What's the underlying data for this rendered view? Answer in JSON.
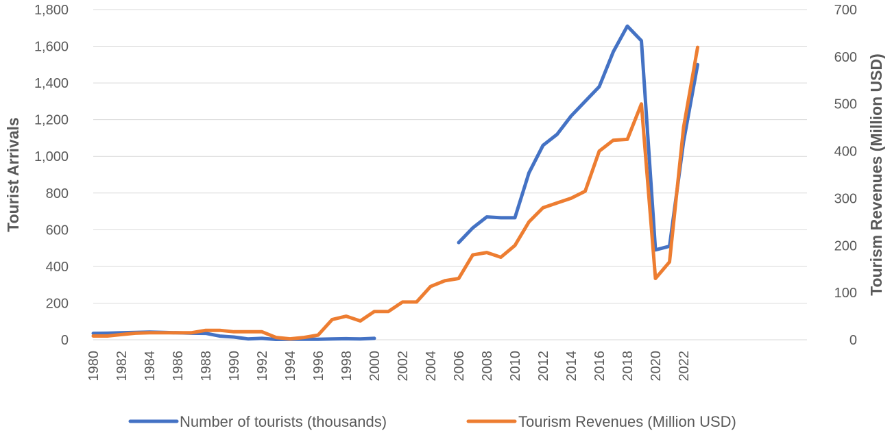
{
  "chart_data": {
    "type": "line",
    "title": "",
    "xlabel": "",
    "ylabel_left": "Tourist Arrivals",
    "ylabel_right": "Tourism Revenues (Million USD)",
    "y_left_range": [
      0,
      1800
    ],
    "y_left_ticks": [
      "0",
      "200",
      "400",
      "600",
      "800",
      "1,000",
      "1,200",
      "1,400",
      "1,600",
      "1,800"
    ],
    "y_right_range": [
      0,
      700
    ],
    "y_right_ticks": [
      "0",
      "100",
      "200",
      "300",
      "400",
      "500",
      "600",
      "700"
    ],
    "x_range": [
      1980,
      2023
    ],
    "x_tick_labels": [
      "1980",
      "1982",
      "1984",
      "1986",
      "1988",
      "1990",
      "1992",
      "1994",
      "1996",
      "1998",
      "2000",
      "2002",
      "2004",
      "2006",
      "2008",
      "2010",
      "2012",
      "2014",
      "2016",
      "2018",
      "2020",
      "2022"
    ],
    "legend_position": "bottom",
    "series": [
      {
        "name": "Number of tourists (thousands)",
        "axis": "left",
        "color": "#4472C4",
        "segments": [
          {
            "x": [
              1980,
              1981,
              1982,
              1983,
              1984,
              1985,
              1986,
              1987,
              1988,
              1989,
              1990,
              1991,
              1992,
              1993,
              1994,
              1995,
              1996,
              1997,
              1998,
              1999,
              2000
            ],
            "values": [
              35,
              36,
              38,
              40,
              42,
              40,
              38,
              36,
              35,
              20,
              15,
              5,
              8,
              2,
              3,
              3,
              3,
              5,
              6,
              5,
              8
            ]
          },
          {
            "x": [
              2006,
              2007,
              2008,
              2009,
              2010,
              2011,
              2012,
              2013,
              2014,
              2015,
              2016,
              2017,
              2018,
              2019,
              2020,
              2021,
              2022,
              2023
            ],
            "values": [
              530,
              610,
              670,
              665,
              665,
              910,
              1060,
              1120,
              1220,
              1300,
              1380,
              1570,
              1710,
              1630,
              490,
              510,
              1080,
              1500
            ]
          }
        ]
      },
      {
        "name": "Tourism Revenues (Million USD)",
        "axis": "right",
        "color": "#ED7D31",
        "segments": [
          {
            "x": [
              1980,
              1981,
              1982,
              1983,
              1984,
              1985,
              1986,
              1987,
              1988,
              1989,
              1990,
              1991,
              1992,
              1993,
              1994,
              1995,
              1996,
              1997,
              1998,
              1999,
              2000,
              2001,
              2002,
              2003,
              2004,
              2005,
              2006,
              2007,
              2008,
              2009,
              2010,
              2011,
              2012,
              2013,
              2014,
              2015,
              2016,
              2017,
              2018,
              2019,
              2020,
              2021,
              2022,
              2023
            ],
            "values": [
              8,
              8,
              11,
              14,
              15,
              15,
              15,
              15,
              20,
              20,
              17,
              17,
              17,
              5,
              2,
              5,
              10,
              43,
              50,
              40,
              60,
              60,
              80,
              80,
              113,
              125,
              130,
              180,
              185,
              175,
              200,
              250,
              280,
              290,
              300,
              315,
              400,
              423,
              425,
              500,
              130,
              165,
              450,
              620
            ]
          }
        ]
      }
    ]
  }
}
